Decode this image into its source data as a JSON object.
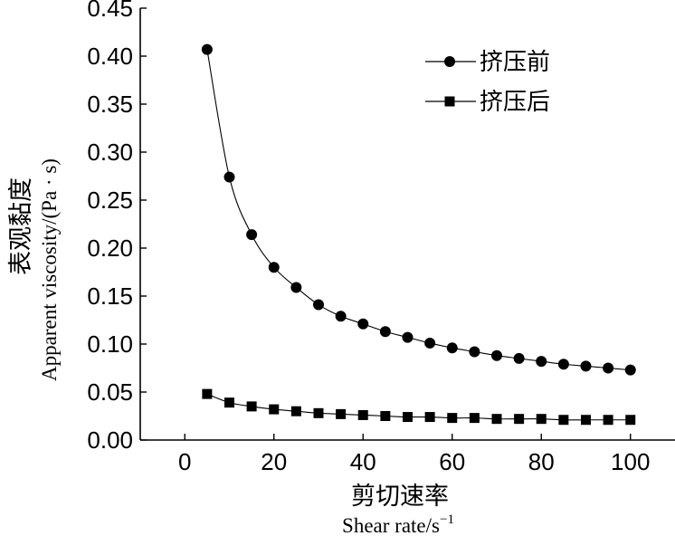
{
  "chart_data": {
    "type": "line",
    "title": "",
    "xlabel_cn": "剪切速率",
    "xlabel_en": "Shear rate/s",
    "xlabel_en_sup": "−1",
    "ylabel_cn": "表观黏度",
    "ylabel_en": "Apparent viscosity/(Pa · s)",
    "xlim": [
      -10,
      110
    ],
    "ylim": [
      0,
      0.45
    ],
    "x_ticks": [
      0,
      20,
      40,
      60,
      80,
      100
    ],
    "x_tick_labels": [
      "0",
      "20",
      "40",
      "60",
      "80",
      "100"
    ],
    "y_ticks": [
      0,
      0.05,
      0.1,
      0.15,
      0.2,
      0.25,
      0.3,
      0.35,
      0.4,
      0.45
    ],
    "y_tick_labels": [
      "0.00",
      "0.05",
      "0.10",
      "0.15",
      "0.20",
      "0.25",
      "0.30",
      "0.35",
      "0.40",
      "0.45"
    ],
    "grid": false,
    "legend_position": "top-right",
    "x": [
      5,
      10,
      15,
      20,
      25,
      30,
      35,
      40,
      45,
      50,
      55,
      60,
      65,
      70,
      75,
      80,
      85,
      90,
      95,
      100
    ],
    "series": [
      {
        "name": "挤压前",
        "marker": "circle",
        "color": "#000000",
        "values": [
          0.407,
          0.274,
          0.214,
          0.18,
          0.159,
          0.141,
          0.129,
          0.121,
          0.113,
          0.107,
          0.101,
          0.096,
          0.092,
          0.088,
          0.085,
          0.082,
          0.079,
          0.077,
          0.075,
          0.073
        ]
      },
      {
        "name": "挤压后",
        "marker": "square",
        "color": "#000000",
        "values": [
          0.048,
          0.039,
          0.035,
          0.032,
          0.03,
          0.028,
          0.027,
          0.026,
          0.025,
          0.024,
          0.024,
          0.023,
          0.023,
          0.022,
          0.022,
          0.022,
          0.021,
          0.021,
          0.021,
          0.021
        ]
      }
    ]
  }
}
